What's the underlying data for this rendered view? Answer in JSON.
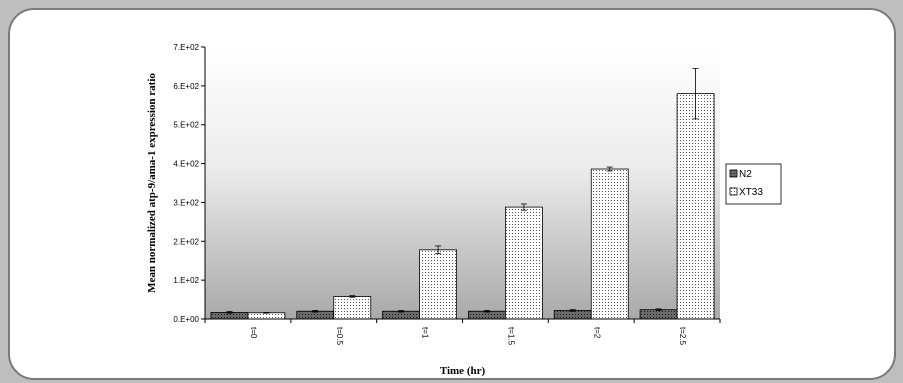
{
  "chart_data": {
    "type": "bar",
    "categories": [
      "t=0",
      "t=0.5",
      "t=1",
      "t=1.5",
      "t=2",
      "t=2.5"
    ],
    "series": [
      {
        "name": "N2",
        "values": [
          17,
          20,
          20,
          20,
          22,
          24
        ],
        "errors": [
          2,
          2,
          2,
          2,
          2,
          2
        ],
        "pattern": "dark-dotted"
      },
      {
        "name": "XT33",
        "values": [
          16,
          58,
          178,
          288,
          386,
          580
        ],
        "errors": [
          1,
          2,
          10,
          8,
          5,
          65
        ],
        "pattern": "light-dotted"
      }
    ],
    "xlabel": "Time (hr)",
    "ylabel": "Mean normalized atp-9/ama-1 expression ratio",
    "ylim": [
      0,
      700
    ],
    "yticks": [
      {
        "value": 0,
        "label": "0.E+00"
      },
      {
        "value": 100,
        "label": "1.E+02"
      },
      {
        "value": 200,
        "label": "2.E+02"
      },
      {
        "value": 300,
        "label": "3.E+02"
      },
      {
        "value": 400,
        "label": "4.E+02"
      },
      {
        "value": 500,
        "label": "5.E+02"
      },
      {
        "value": 600,
        "label": "6.E+02"
      },
      {
        "value": 700,
        "label": "7.E+02"
      }
    ],
    "legend_position": "right",
    "plot_background": "gradient-white-to-gray",
    "grid": false
  }
}
